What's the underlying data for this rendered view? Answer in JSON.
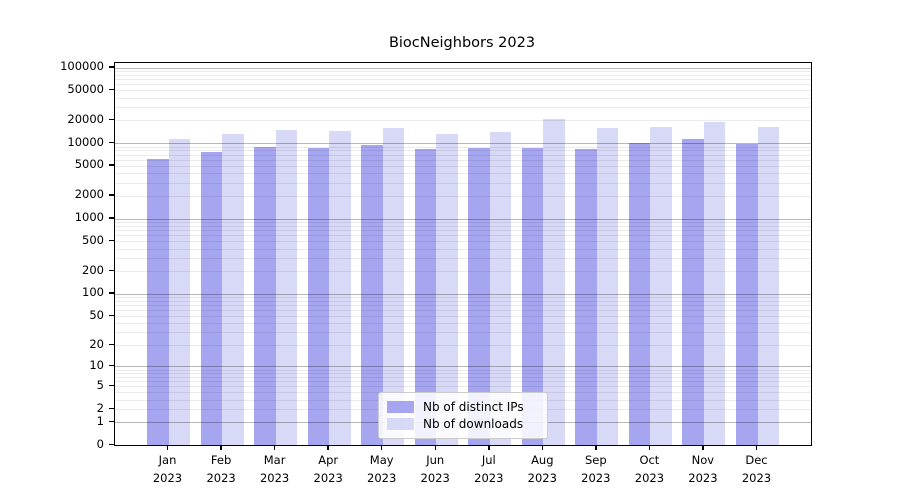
{
  "title": "BiocNeighbors 2023",
  "chart_data": {
    "type": "bar",
    "title": "BiocNeighbors 2023",
    "scale": "log1p",
    "categories": [
      "Jan",
      "Feb",
      "Mar",
      "Apr",
      "May",
      "Jun",
      "Jul",
      "Aug",
      "Sep",
      "Oct",
      "Nov",
      "Dec"
    ],
    "x_year_line": "2023",
    "series": [
      {
        "name": "Nb of distinct IPs",
        "color": "#a5a5f0",
        "values": [
          6200,
          7600,
          9000,
          8600,
          9500,
          8300,
          8600,
          8600,
          8300,
          10000,
          11300,
          9700
        ]
      },
      {
        "name": "Nb of downloads",
        "color": "#d8d8f7",
        "values": [
          11200,
          13200,
          15100,
          14600,
          15800,
          13200,
          14000,
          20900,
          15800,
          16200,
          19000,
          16200
        ]
      }
    ],
    "y_ticks": [
      100000,
      50000,
      20000,
      10000,
      5000,
      2000,
      1000,
      500,
      200,
      100,
      50,
      20,
      10,
      5,
      2,
      1,
      0
    ],
    "ylim": [
      0,
      115000
    ],
    "xlabel": "",
    "ylabel": "",
    "grid": "horizontal log minor + major",
    "legend_position": "lower-center-inside"
  },
  "legend": {
    "items": [
      {
        "label": "Nb of distinct IPs",
        "color": "#a5a5f0"
      },
      {
        "label": "Nb of downloads",
        "color": "#d8d8f7"
      }
    ]
  },
  "colors": {
    "background": "#ffffff",
    "axis": "#000000",
    "text": "#000000",
    "grid_major": "rgba(0,0,0,0.28)",
    "grid_minor": "rgba(0,0,0,0.08)",
    "bar_distinct_ips": "#a5a5f0",
    "bar_downloads": "#d8d8f7",
    "legend_bg": "rgba(255,255,255,0.85)",
    "legend_border": "#cccccc"
  }
}
